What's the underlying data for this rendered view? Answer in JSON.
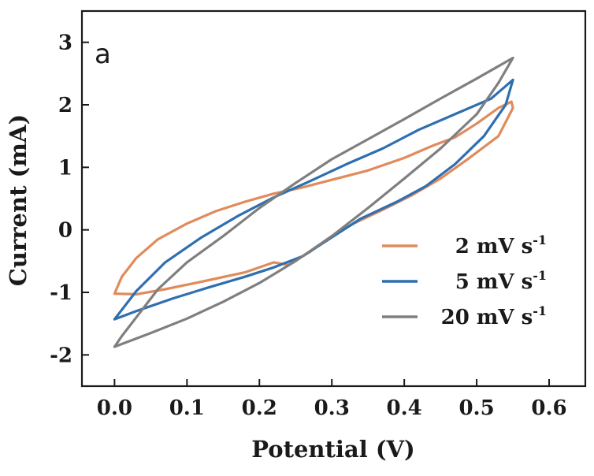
{
  "chart_data": {
    "type": "line",
    "panel_label": "a",
    "xlabel": "Potential (V)",
    "ylabel": "Current (mA)",
    "xlim": [
      -0.045,
      0.65
    ],
    "ylim": [
      -2.5,
      3.5
    ],
    "x_ticks": [
      0.0,
      0.1,
      0.2,
      0.3,
      0.4,
      0.5,
      0.6
    ],
    "x_tick_labels": [
      "0.0",
      "0.1",
      "0.2",
      "0.3",
      "0.4",
      "0.5",
      "0.6"
    ],
    "y_ticks": [
      -2,
      -1,
      0,
      1,
      2,
      3
    ],
    "y_tick_labels": [
      "-2",
      "-1",
      "0",
      "1",
      "2",
      "3"
    ],
    "grid": false,
    "legend_position": "lower-right",
    "series": [
      {
        "name": "2 mV s",
        "name_sup": "-1",
        "color": "#e08b5b",
        "points": [
          [
            0.0,
            -1.02
          ],
          [
            0.03,
            -1.03
          ],
          [
            0.07,
            -0.95
          ],
          [
            0.12,
            -0.83
          ],
          [
            0.18,
            -0.68
          ],
          [
            0.22,
            -0.52
          ],
          [
            0.24,
            -0.56
          ],
          [
            0.27,
            -0.35
          ],
          [
            0.3,
            -0.1
          ],
          [
            0.33,
            0.1
          ],
          [
            0.37,
            0.32
          ],
          [
            0.41,
            0.55
          ],
          [
            0.45,
            0.82
          ],
          [
            0.49,
            1.15
          ],
          [
            0.53,
            1.5
          ],
          [
            0.55,
            1.95
          ],
          [
            0.548,
            2.05
          ],
          [
            0.53,
            1.95
          ],
          [
            0.5,
            1.7
          ],
          [
            0.47,
            1.48
          ],
          [
            0.44,
            1.35
          ],
          [
            0.4,
            1.15
          ],
          [
            0.35,
            0.95
          ],
          [
            0.3,
            0.8
          ],
          [
            0.26,
            0.68
          ],
          [
            0.22,
            0.58
          ],
          [
            0.18,
            0.45
          ],
          [
            0.14,
            0.3
          ],
          [
            0.1,
            0.1
          ],
          [
            0.06,
            -0.15
          ],
          [
            0.03,
            -0.45
          ],
          [
            0.01,
            -0.75
          ],
          [
            0.0,
            -1.02
          ]
        ]
      },
      {
        "name": "5 mV s",
        "name_sup": "-1",
        "color": "#2f6fb0",
        "points": [
          [
            0.0,
            -1.43
          ],
          [
            0.03,
            -1.3
          ],
          [
            0.08,
            -1.1
          ],
          [
            0.13,
            -0.92
          ],
          [
            0.18,
            -0.75
          ],
          [
            0.22,
            -0.6
          ],
          [
            0.26,
            -0.42
          ],
          [
            0.3,
            -0.12
          ],
          [
            0.34,
            0.18
          ],
          [
            0.39,
            0.45
          ],
          [
            0.43,
            0.7
          ],
          [
            0.47,
            1.05
          ],
          [
            0.51,
            1.5
          ],
          [
            0.54,
            2.0
          ],
          [
            0.55,
            2.4
          ],
          [
            0.52,
            2.1
          ],
          [
            0.47,
            1.85
          ],
          [
            0.42,
            1.6
          ],
          [
            0.37,
            1.3
          ],
          [
            0.32,
            1.05
          ],
          [
            0.27,
            0.78
          ],
          [
            0.22,
            0.52
          ],
          [
            0.17,
            0.22
          ],
          [
            0.12,
            -0.12
          ],
          [
            0.07,
            -0.52
          ],
          [
            0.03,
            -0.98
          ],
          [
            0.01,
            -1.28
          ],
          [
            0.0,
            -1.43
          ]
        ]
      },
      {
        "name": "20 mV s",
        "name_sup": "-1",
        "color": "#7f7f7f",
        "points": [
          [
            0.0,
            -1.87
          ],
          [
            0.05,
            -1.65
          ],
          [
            0.1,
            -1.42
          ],
          [
            0.15,
            -1.15
          ],
          [
            0.2,
            -0.85
          ],
          [
            0.25,
            -0.5
          ],
          [
            0.3,
            -0.1
          ],
          [
            0.35,
            0.35
          ],
          [
            0.4,
            0.82
          ],
          [
            0.45,
            1.3
          ],
          [
            0.5,
            1.85
          ],
          [
            0.53,
            2.35
          ],
          [
            0.55,
            2.75
          ],
          [
            0.5,
            2.42
          ],
          [
            0.45,
            2.1
          ],
          [
            0.4,
            1.77
          ],
          [
            0.35,
            1.45
          ],
          [
            0.3,
            1.13
          ],
          [
            0.25,
            0.75
          ],
          [
            0.2,
            0.35
          ],
          [
            0.15,
            -0.1
          ],
          [
            0.1,
            -0.52
          ],
          [
            0.06,
            -0.95
          ],
          [
            0.03,
            -1.4
          ],
          [
            0.01,
            -1.7
          ],
          [
            0.0,
            -1.87
          ]
        ]
      }
    ]
  }
}
